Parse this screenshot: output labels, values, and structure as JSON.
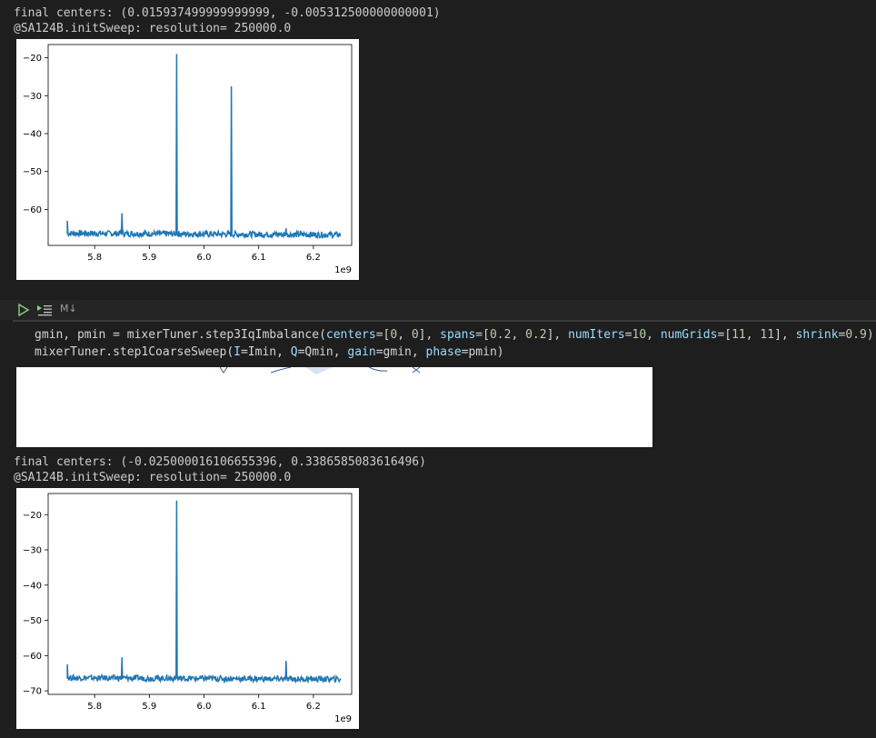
{
  "output1": {
    "line1": "final centers: (0.015937499999999999, -0.005312500000000001)",
    "line2": "@SA124B.initSweep: resolution= 250000.0"
  },
  "chart_data": [
    {
      "type": "line",
      "x_exponent": "1e9",
      "xlim": [
        5.715,
        6.27
      ],
      "ylim": [
        -69.5,
        -16.5
      ],
      "x_ticks": [
        "5.8",
        "5.9",
        "6.0",
        "6.1",
        "6.2"
      ],
      "y_ticks": [
        "−20",
        "−30",
        "−40",
        "−50",
        "−60"
      ],
      "color": "#1f77b4",
      "noise_floor": -66.5,
      "x_range": [
        5.75,
        6.25
      ],
      "peaks": [
        {
          "x": 5.75,
          "y": -63
        },
        {
          "x": 5.85,
          "y": -61
        },
        {
          "x": 5.95,
          "y": -19
        },
        {
          "x": 6.05,
          "y": -27.5
        },
        {
          "x": 6.15,
          "y": -65
        }
      ]
    },
    {
      "type": "line",
      "x_exponent": "1e9",
      "xlim": [
        5.715,
        6.27
      ],
      "ylim": [
        -71,
        -14
      ],
      "x_ticks": [
        "5.8",
        "5.9",
        "6.0",
        "6.1",
        "6.2"
      ],
      "y_ticks": [
        "−20",
        "−30",
        "−40",
        "−50",
        "−60",
        "−70"
      ],
      "color": "#1f77b4",
      "noise_floor": -66.5,
      "x_range": [
        5.75,
        6.25
      ],
      "peaks": [
        {
          "x": 5.75,
          "y": -62.5
        },
        {
          "x": 5.85,
          "y": -60.5
        },
        {
          "x": 5.95,
          "y": -16
        },
        {
          "x": 6.15,
          "y": -61.5
        }
      ]
    }
  ],
  "cell": {
    "run_icon": "play-icon",
    "run_below_icon": "run-below-icon",
    "md_label": "M↓",
    "code": {
      "l1_a": "gmin, pmin = mixerTuner.step3IqImbalance(",
      "l1_centers": "centers",
      "l1_eq1": "=[",
      "l1_c0": "0",
      "l1_sep1": ", ",
      "l1_c1": "0",
      "l1_close1": "], ",
      "l1_spans": "spans",
      "l1_eq2": "=[",
      "l1_s0": "0.2",
      "l1_sep2": ", ",
      "l1_s1": "0.2",
      "l1_close2": "], ",
      "l1_numiters": "numIters",
      "l1_eq3": "=",
      "l1_ni": "10",
      "l1_sep3": ", ",
      "l1_numgrids": "numGrids",
      "l1_eq4": "=[",
      "l1_g0": "11",
      "l1_sep4": ", ",
      "l1_g1": "11",
      "l1_close4": "], ",
      "l1_shrink": "shrink",
      "l1_eq5": "=",
      "l1_sh": "0.9",
      "l1_end": ")",
      "l2_a": "mixerTuner.step1CoarseSweep(",
      "l2_I": "I",
      "l2_Iv": "=Imin, ",
      "l2_Q": "Q",
      "l2_Qv": "=Qmin, ",
      "l2_gain": "gain",
      "l2_gainv": "=gmin, ",
      "l2_phase": "phase",
      "l2_phasev": "=pmin)"
    }
  },
  "output2": {
    "line1": "final centers: (-0.025000016106655396, 0.3386585083616496)",
    "line2": "@SA124B.initSweep: resolution= 250000.0"
  }
}
